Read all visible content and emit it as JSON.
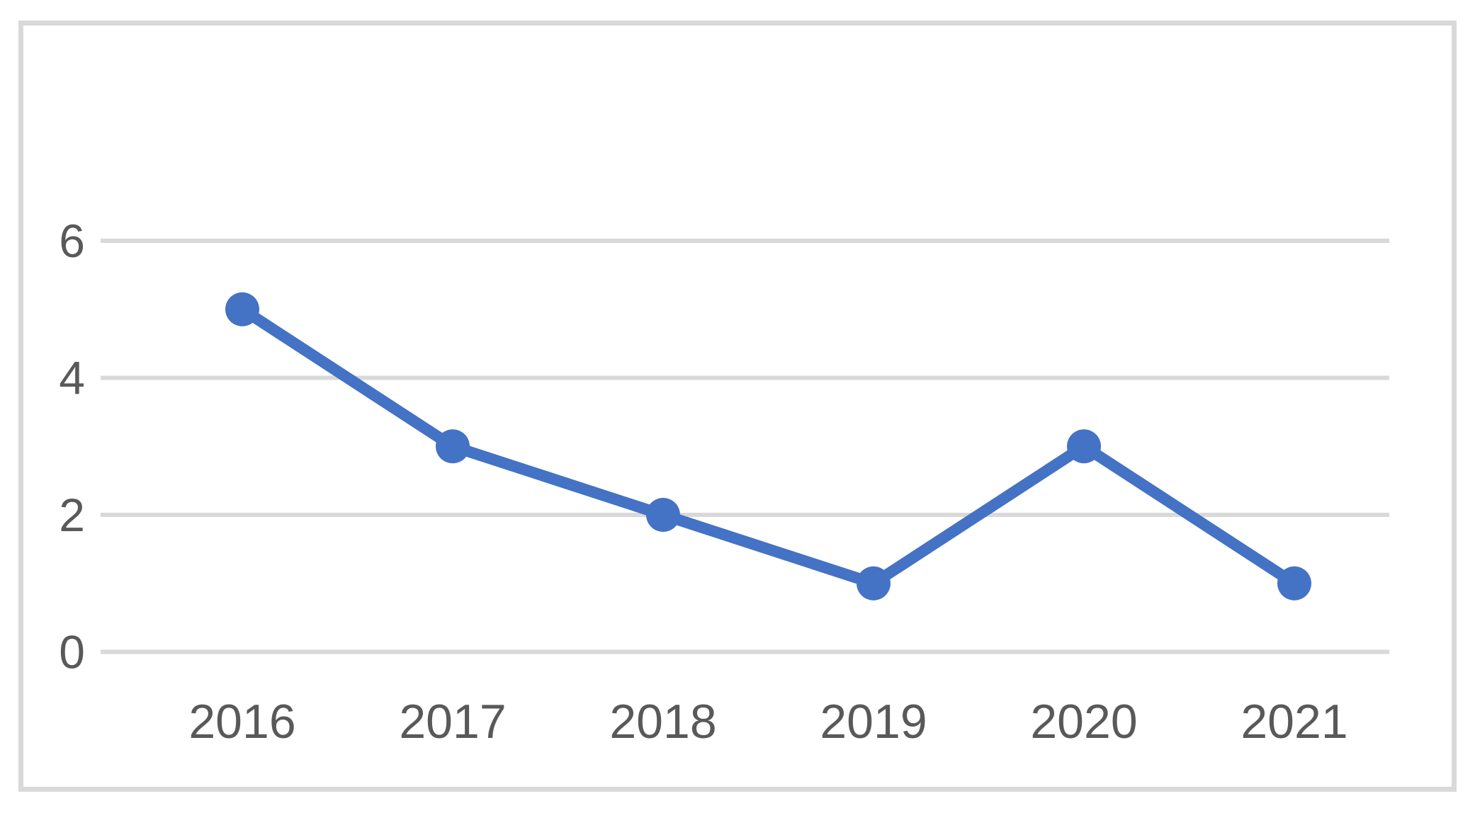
{
  "chart_data": {
    "type": "line",
    "title": "",
    "xlabel": "",
    "ylabel": "",
    "x": [
      "2016",
      "2017",
      "2018",
      "2019",
      "2020",
      "2021"
    ],
    "values": [
      5,
      3,
      2,
      1,
      3,
      1
    ],
    "ylim": [
      0,
      6
    ],
    "y_ticks": [
      0,
      2,
      4,
      6
    ],
    "grid": "horizontal-only",
    "legend_position": "none",
    "marker": "circle",
    "colors": {
      "line": "#4472C4",
      "marker": "#4472C4",
      "gridline": "#D9D9D9",
      "tick_label": "#595959",
      "chart_border": "#D9D9D9",
      "background": "#FFFFFF"
    }
  }
}
